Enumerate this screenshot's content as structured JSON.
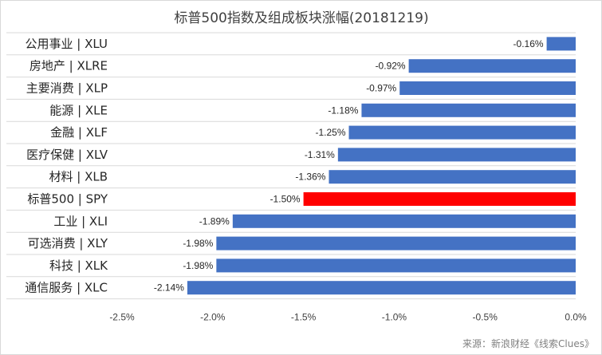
{
  "chart_data": {
    "type": "bar",
    "orientation": "horizontal",
    "title": "标普500指数及组成板块涨幅(20181219)",
    "categories": [
      "公用事业 | XLU",
      "房地产 | XLRE",
      "主要消费 | XLP",
      "能源 | XLE",
      "金融 | XLF",
      "医疗保健 | XLV",
      "材料 | XLB",
      "标普500 | SPY",
      "工业 | XLI",
      "可选消费 | XLY",
      "科技 | XLK",
      "通信服务 | XLC"
    ],
    "values": [
      -0.16,
      -0.92,
      -0.97,
      -1.18,
      -1.25,
      -1.31,
      -1.36,
      -1.5,
      -1.89,
      -1.98,
      -1.98,
      -2.14
    ],
    "data_labels": [
      "-0.16%",
      "-0.92%",
      "-0.97%",
      "-1.18%",
      "-1.25%",
      "-1.31%",
      "-1.36%",
      "-1.50%",
      "-1.89%",
      "-1.98%",
      "-1.98%",
      "-2.14%"
    ],
    "xlim": [
      -2.5,
      0.0
    ],
    "x_ticks": [
      "-2.5%",
      "-2.0%",
      "-1.5%",
      "-1.0%",
      "-0.5%",
      "0.0%"
    ],
    "x_tick_values": [
      -2.5,
      -2.0,
      -1.5,
      -1.0,
      -0.5,
      0.0
    ],
    "grid": true,
    "legend": "none",
    "colors": {
      "bar": "#4472c4",
      "highlight": "#ff0000",
      "gridline": "#d9d9d9"
    },
    "highlight_category": "标普500 | SPY",
    "source_note": "来源：新浪财经《线索Clues》"
  }
}
